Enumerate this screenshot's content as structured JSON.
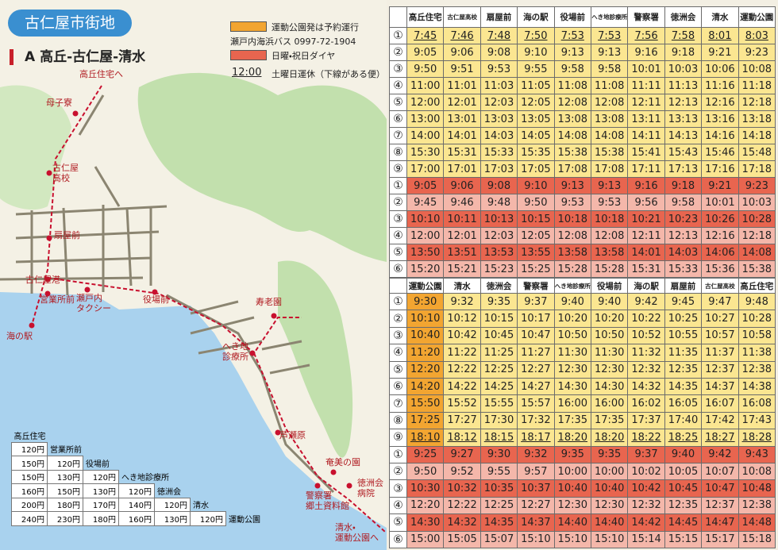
{
  "header": {
    "title": "古仁屋市街地",
    "route": "A 高丘-古仁屋-清水"
  },
  "legend": {
    "reservation": "運動公園発は予約運行",
    "operator": "瀬戸内海浜バス 0997-72-1904",
    "holiday": "日曜・祝日ダイヤ",
    "sample_time": "12:00",
    "saturday_note": "土曜日運休（下線がある便）"
  },
  "map": {
    "labels": [
      [
        "高丘住宅へ"
      ],
      [
        "母子寮"
      ],
      [
        "古仁屋",
        "高校"
      ],
      [
        "扇屋前"
      ],
      [
        "古仁屋港"
      ],
      [
        "営業所前"
      ],
      [
        "瀬戸内",
        "タクシー"
      ],
      [
        "役場前"
      ],
      [
        "海の駅"
      ],
      [
        "寿老園"
      ],
      [
        "へき地",
        "診療所"
      ],
      [
        "芦瀬原"
      ],
      [
        "奄美の園"
      ],
      [
        "徳洲会",
        "病院"
      ],
      [
        "警察署",
        "郷土資料館"
      ],
      [
        "清水・",
        "運動公園へ"
      ]
    ]
  },
  "fares": {
    "stations": [
      "高丘住宅",
      "営業所前",
      "役場前",
      "へき地診療所",
      "徳洲会",
      "清水",
      "運動公園"
    ],
    "rows": [
      [],
      [
        "120円"
      ],
      [
        "150円",
        "120円"
      ],
      [
        "150円",
        "130円",
        "120円"
      ],
      [
        "160円",
        "150円",
        "130円",
        "120円"
      ],
      [
        "200円",
        "180円",
        "170円",
        "140円",
        "120円"
      ],
      [
        "240円",
        "230円",
        "180円",
        "160円",
        "130円",
        "120円"
      ]
    ]
  },
  "outbound": {
    "headers": [
      "高丘住宅",
      "古仁屋高校",
      "扇屋前",
      "海の駅",
      "役場前",
      "へき地診療所",
      "警察署",
      "徳洲会",
      "清水",
      "運動公園"
    ],
    "weekday": [
      {
        "no": "①",
        "underlined": true,
        "times": [
          "7:45",
          "7:46",
          "7:48",
          "7:50",
          "7:53",
          "7:53",
          "7:56",
          "7:58",
          "8:01",
          "8:03"
        ]
      },
      {
        "no": "②",
        "times": [
          "9:05",
          "9:06",
          "9:08",
          "9:10",
          "9:13",
          "9:13",
          "9:16",
          "9:18",
          "9:21",
          "9:23"
        ]
      },
      {
        "no": "③",
        "times": [
          "9:50",
          "9:51",
          "9:53",
          "9:55",
          "9:58",
          "9:58",
          "10:01",
          "10:03",
          "10:06",
          "10:08"
        ]
      },
      {
        "no": "④",
        "times": [
          "11:00",
          "11:01",
          "11:03",
          "11:05",
          "11:08",
          "11:08",
          "11:11",
          "11:13",
          "11:16",
          "11:18"
        ]
      },
      {
        "no": "⑤",
        "times": [
          "12:00",
          "12:01",
          "12:03",
          "12:05",
          "12:08",
          "12:08",
          "12:11",
          "12:13",
          "12:16",
          "12:18"
        ]
      },
      {
        "no": "⑥",
        "times": [
          "13:00",
          "13:01",
          "13:03",
          "13:05",
          "13:08",
          "13:08",
          "13:11",
          "13:13",
          "13:16",
          "13:18"
        ]
      },
      {
        "no": "⑦",
        "times": [
          "14:00",
          "14:01",
          "14:03",
          "14:05",
          "14:08",
          "14:08",
          "14:11",
          "14:13",
          "14:16",
          "14:18"
        ]
      },
      {
        "no": "⑧",
        "times": [
          "15:30",
          "15:31",
          "15:33",
          "15:35",
          "15:38",
          "15:38",
          "15:41",
          "15:43",
          "15:46",
          "15:48"
        ]
      },
      {
        "no": "⑨",
        "times": [
          "17:00",
          "17:01",
          "17:03",
          "17:05",
          "17:08",
          "17:08",
          "17:11",
          "17:13",
          "17:16",
          "17:18"
        ]
      }
    ],
    "holiday": [
      {
        "no": "①",
        "times": [
          "9:05",
          "9:06",
          "9:08",
          "9:10",
          "9:13",
          "9:13",
          "9:16",
          "9:18",
          "9:21",
          "9:23"
        ]
      },
      {
        "no": "②",
        "times": [
          "9:45",
          "9:46",
          "9:48",
          "9:50",
          "9:53",
          "9:53",
          "9:56",
          "9:58",
          "10:01",
          "10:03"
        ]
      },
      {
        "no": "③",
        "times": [
          "10:10",
          "10:11",
          "10:13",
          "10:15",
          "10:18",
          "10:18",
          "10:21",
          "10:23",
          "10:26",
          "10:28"
        ]
      },
      {
        "no": "④",
        "times": [
          "12:00",
          "12:01",
          "12:03",
          "12:05",
          "12:08",
          "12:08",
          "12:11",
          "12:13",
          "12:16",
          "12:18"
        ]
      },
      {
        "no": "⑤",
        "times": [
          "13:50",
          "13:51",
          "13:53",
          "13:55",
          "13:58",
          "13:58",
          "14:01",
          "14:03",
          "14:06",
          "14:08"
        ]
      },
      {
        "no": "⑥",
        "times": [
          "15:20",
          "15:21",
          "15:23",
          "15:25",
          "15:28",
          "15:28",
          "15:31",
          "15:33",
          "15:36",
          "15:38"
        ]
      }
    ]
  },
  "inbound": {
    "headers": [
      "運動公園",
      "清水",
      "徳洲会",
      "警察署",
      "へき地診療所",
      "役場前",
      "海の駅",
      "扇屋前",
      "古仁屋高校",
      "高丘住宅"
    ],
    "weekday": [
      {
        "no": "①",
        "times": [
          "9:30",
          "9:32",
          "9:35",
          "9:37",
          "9:40",
          "9:40",
          "9:42",
          "9:45",
          "9:47",
          "9:48"
        ]
      },
      {
        "no": "②",
        "times": [
          "10:10",
          "10:12",
          "10:15",
          "10:17",
          "10:20",
          "10:20",
          "10:22",
          "10:25",
          "10:27",
          "10:28"
        ]
      },
      {
        "no": "③",
        "times": [
          "10:40",
          "10:42",
          "10:45",
          "10:47",
          "10:50",
          "10:50",
          "10:52",
          "10:55",
          "10:57",
          "10:58"
        ]
      },
      {
        "no": "④",
        "times": [
          "11:20",
          "11:22",
          "11:25",
          "11:27",
          "11:30",
          "11:30",
          "11:32",
          "11:35",
          "11:37",
          "11:38"
        ]
      },
      {
        "no": "⑤",
        "times": [
          "12:20",
          "12:22",
          "12:25",
          "12:27",
          "12:30",
          "12:30",
          "12:32",
          "12:35",
          "12:37",
          "12:38"
        ]
      },
      {
        "no": "⑥",
        "times": [
          "14:20",
          "14:22",
          "14:25",
          "14:27",
          "14:30",
          "14:30",
          "14:32",
          "14:35",
          "14:37",
          "14:38"
        ]
      },
      {
        "no": "⑦",
        "times": [
          "15:50",
          "15:52",
          "15:55",
          "15:57",
          "16:00",
          "16:00",
          "16:02",
          "16:05",
          "16:07",
          "16:08"
        ]
      },
      {
        "no": "⑧",
        "times": [
          "17:25",
          "17:27",
          "17:30",
          "17:32",
          "17:35",
          "17:35",
          "17:37",
          "17:40",
          "17:42",
          "17:43"
        ]
      },
      {
        "no": "⑨",
        "underlined": true,
        "times": [
          "18:10",
          "18:12",
          "18:15",
          "18:17",
          "18:20",
          "18:20",
          "18:22",
          "18:25",
          "18:27",
          "18:28"
        ]
      }
    ],
    "holiday": [
      {
        "no": "①",
        "times": [
          "9:25",
          "9:27",
          "9:30",
          "9:32",
          "9:35",
          "9:35",
          "9:37",
          "9:40",
          "9:42",
          "9:43"
        ]
      },
      {
        "no": "②",
        "times": [
          "9:50",
          "9:52",
          "9:55",
          "9:57",
          "10:00",
          "10:00",
          "10:02",
          "10:05",
          "10:07",
          "10:08"
        ]
      },
      {
        "no": "③",
        "times": [
          "10:30",
          "10:32",
          "10:35",
          "10:37",
          "10:40",
          "10:40",
          "10:42",
          "10:45",
          "10:47",
          "10:48"
        ]
      },
      {
        "no": "④",
        "times": [
          "12:20",
          "12:22",
          "12:25",
          "12:27",
          "12:30",
          "12:30",
          "12:32",
          "12:35",
          "12:37",
          "12:38"
        ]
      },
      {
        "no": "⑤",
        "times": [
          "14:30",
          "14:32",
          "14:35",
          "14:37",
          "14:40",
          "14:40",
          "14:42",
          "14:45",
          "14:47",
          "14:48"
        ]
      },
      {
        "no": "⑥",
        "times": [
          "15:00",
          "15:05",
          "15:07",
          "15:10",
          "15:10",
          "15:10",
          "15:14",
          "15:15",
          "15:17",
          "15:18"
        ]
      }
    ]
  }
}
